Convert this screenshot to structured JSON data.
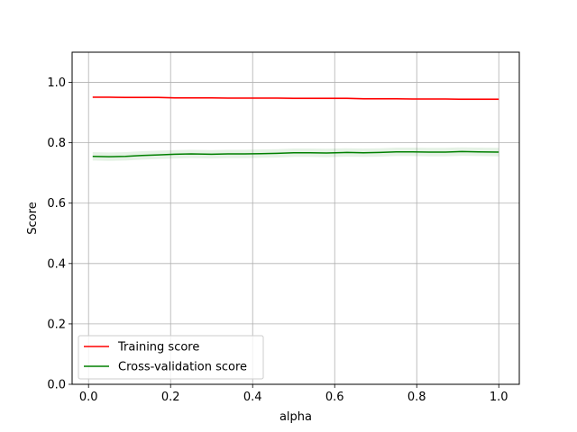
{
  "chart_data": {
    "type": "line",
    "title": "",
    "xlabel": "alpha",
    "ylabel": "Score",
    "xlim": [
      -0.04,
      1.05
    ],
    "ylim": [
      0.0,
      1.1
    ],
    "x_ticks": [
      0.0,
      0.2,
      0.4,
      0.6,
      0.8,
      1.0
    ],
    "x_tick_labels": [
      "0.0",
      "0.2",
      "0.4",
      "0.6",
      "0.8",
      "1.0"
    ],
    "y_ticks": [
      0.0,
      0.2,
      0.4,
      0.6,
      0.8,
      1.0
    ],
    "y_tick_labels": [
      "0.0",
      "0.2",
      "0.4",
      "0.6",
      "0.8",
      "1.0"
    ],
    "grid": true,
    "legend_position": "lower-left",
    "x": [
      0.01,
      0.05,
      0.09,
      0.13,
      0.17,
      0.21,
      0.25,
      0.3,
      0.34,
      0.38,
      0.42,
      0.46,
      0.5,
      0.54,
      0.58,
      0.63,
      0.67,
      0.71,
      0.75,
      0.79,
      0.83,
      0.87,
      0.91,
      0.95,
      1.0
    ],
    "series": [
      {
        "name": "Training score",
        "color": "#ff0000",
        "band_color": "#ff0000",
        "values": [
          0.951,
          0.951,
          0.95,
          0.95,
          0.95,
          0.949,
          0.949,
          0.949,
          0.948,
          0.948,
          0.948,
          0.948,
          0.947,
          0.947,
          0.947,
          0.947,
          0.946,
          0.946,
          0.946,
          0.945,
          0.945,
          0.945,
          0.944,
          0.944,
          0.944
        ],
        "std": [
          0.004,
          0.004,
          0.004,
          0.004,
          0.004,
          0.004,
          0.004,
          0.004,
          0.004,
          0.004,
          0.004,
          0.004,
          0.004,
          0.004,
          0.004,
          0.004,
          0.004,
          0.004,
          0.004,
          0.004,
          0.004,
          0.004,
          0.004,
          0.004,
          0.004
        ]
      },
      {
        "name": "Cross-validation score",
        "color": "#008000",
        "band_color": "#008000",
        "values": [
          0.755,
          0.754,
          0.755,
          0.758,
          0.76,
          0.762,
          0.763,
          0.762,
          0.763,
          0.763,
          0.764,
          0.765,
          0.767,
          0.767,
          0.766,
          0.768,
          0.767,
          0.768,
          0.77,
          0.77,
          0.769,
          0.769,
          0.771,
          0.77,
          0.769
        ],
        "std": [
          0.014,
          0.014,
          0.014,
          0.014,
          0.014,
          0.014,
          0.014,
          0.014,
          0.014,
          0.014,
          0.014,
          0.014,
          0.014,
          0.014,
          0.014,
          0.014,
          0.014,
          0.014,
          0.014,
          0.014,
          0.014,
          0.014,
          0.014,
          0.014,
          0.014
        ]
      }
    ]
  }
}
